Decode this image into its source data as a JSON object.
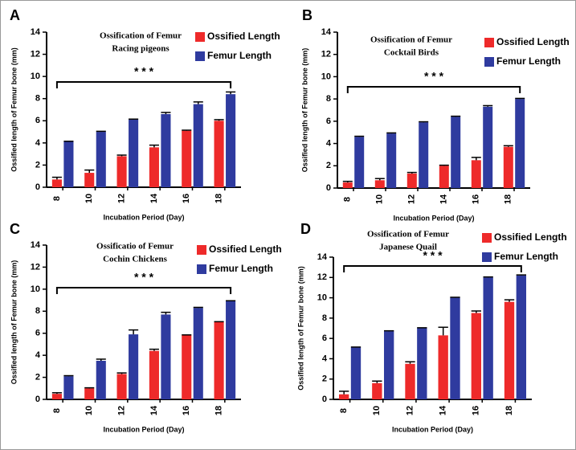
{
  "chart_data": [
    {
      "type": "bar",
      "panel_label": "A",
      "title": "Ossification of Femur",
      "subtitle": "Racing pigeons",
      "annotation": "* * *",
      "x_label": "Incubation Period (Day)",
      "y_label": "Ossified length of  Femur bone  (mm)",
      "categories": [
        "8",
        "10",
        "12",
        "14",
        "16",
        "18"
      ],
      "series": [
        {
          "name": "Ossified Length",
          "color": "#ee2a2a",
          "values": [
            0.7,
            1.3,
            2.8,
            3.6,
            5.1,
            6.0
          ],
          "errors": [
            0.2,
            0.25,
            0.1,
            0.2,
            0.05,
            0.1
          ]
        },
        {
          "name": "Femur Length",
          "color": "#2f3b9f",
          "values": [
            4.1,
            5.0,
            6.1,
            6.6,
            7.5,
            8.4
          ],
          "errors": [
            0.05,
            0.05,
            0.05,
            0.15,
            0.2,
            0.2
          ]
        }
      ],
      "ylim": [
        0,
        14
      ],
      "yticks": [
        0,
        2,
        4,
        6,
        8,
        10,
        12,
        14
      ]
    },
    {
      "type": "bar",
      "panel_label": "B",
      "title": "Ossification of Femur",
      "subtitle": "Cocktail Birds",
      "annotation": "* * *",
      "x_label": "Incubation Period (Day)",
      "y_label": "Ossified length of  Femur bone  (mm)",
      "categories": [
        "8",
        "10",
        "12",
        "14",
        "16",
        "18"
      ],
      "series": [
        {
          "name": "Ossified Length",
          "color": "#ee2a2a",
          "values": [
            0.5,
            0.7,
            1.3,
            2.0,
            2.5,
            3.7
          ],
          "errors": [
            0.1,
            0.15,
            0.1,
            0.05,
            0.25,
            0.1
          ]
        },
        {
          "name": "Femur Length",
          "color": "#2f3b9f",
          "values": [
            4.6,
            4.9,
            5.9,
            6.4,
            7.3,
            8.0
          ],
          "errors": [
            0.05,
            0.05,
            0.05,
            0.05,
            0.1,
            0.05
          ]
        }
      ],
      "ylim": [
        0,
        14
      ],
      "yticks": [
        0,
        2,
        4,
        6,
        8,
        10,
        12,
        14
      ]
    },
    {
      "type": "bar",
      "panel_label": "C",
      "title": "Ossificatio of Femur",
      "subtitle": "Cochin Chickens",
      "annotation": "* * *",
      "x_label": "Incubation Period (Day)",
      "y_label": "Ossified length of  Femur bone  (mm)",
      "categories": [
        "8",
        "10",
        "12",
        "14",
        "16",
        "18"
      ],
      "series": [
        {
          "name": "Ossified Length",
          "color": "#ee2a2a",
          "values": [
            0.5,
            1.0,
            2.3,
            4.4,
            5.8,
            7.0
          ],
          "errors": [
            0.1,
            0.05,
            0.1,
            0.15,
            0.05,
            0.05
          ]
        },
        {
          "name": "Femur Length",
          "color": "#2f3b9f",
          "values": [
            2.1,
            3.5,
            5.9,
            7.7,
            8.3,
            8.9
          ],
          "errors": [
            0.05,
            0.15,
            0.4,
            0.2,
            0.05,
            0.05
          ]
        }
      ],
      "ylim": [
        0,
        14
      ],
      "yticks": [
        0,
        2,
        4,
        6,
        8,
        10,
        12,
        14
      ]
    },
    {
      "type": "bar",
      "panel_label": "D",
      "title": "Ossification of Femur",
      "subtitle": "Japanese Quail",
      "annotation": "* * *",
      "x_label": "Incubation Period (Day)",
      "y_label": "Ossified length of Femur bone (mm)",
      "categories": [
        "8",
        "10",
        "12",
        "14",
        "16",
        "18"
      ],
      "series": [
        {
          "name": "Ossified Length",
          "color": "#ee2a2a",
          "values": [
            0.5,
            1.6,
            3.5,
            6.3,
            8.5,
            9.6
          ],
          "errors": [
            0.3,
            0.2,
            0.2,
            0.8,
            0.2,
            0.2
          ]
        },
        {
          "name": "Femur Length",
          "color": "#2f3b9f",
          "values": [
            5.1,
            6.7,
            7.0,
            10.0,
            12.0,
            12.2
          ],
          "errors": [
            0.05,
            0.05,
            0.05,
            0.05,
            0.05,
            0.05
          ]
        }
      ],
      "ylim": [
        0,
        14
      ],
      "yticks": [
        0,
        2,
        4,
        6,
        8,
        10,
        12,
        14
      ]
    }
  ]
}
